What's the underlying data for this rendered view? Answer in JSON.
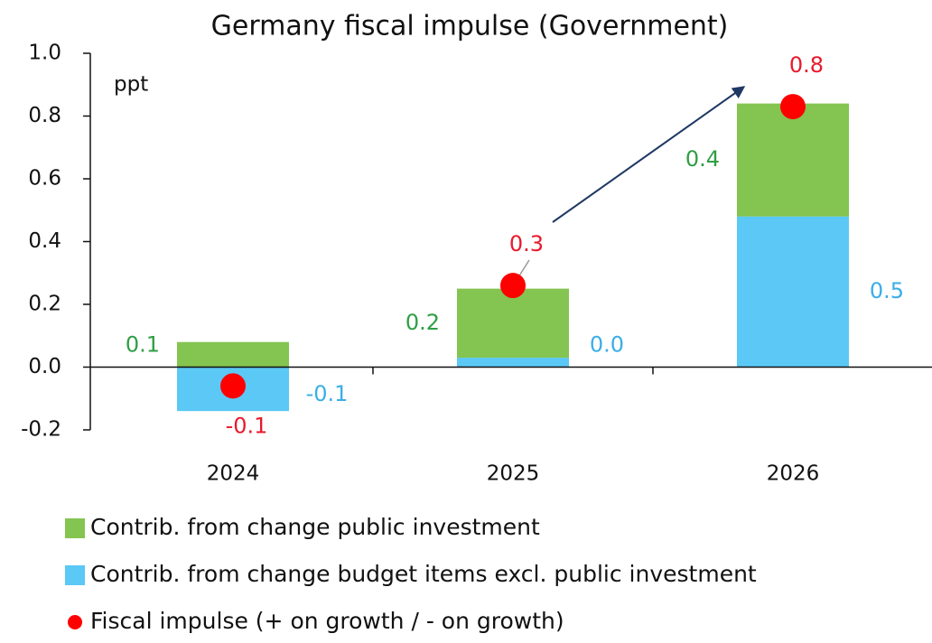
{
  "chart_data": {
    "type": "stacked_bar_dot",
    "title": "Germany fiscal impulse (Government)",
    "y_unit_label": "ppt",
    "categories": [
      "2024",
      "2025",
      "2026"
    ],
    "series": [
      {
        "name": "Contrib. from change budget items excl. public investment",
        "color": "#5bc8f5",
        "label_color": "#3aaee6",
        "values": [
          -0.14,
          0.03,
          0.48
        ],
        "value_labels": [
          "-0.1",
          "0.0",
          "0.5"
        ]
      },
      {
        "name": "Contrib. from change public investment",
        "color": "#84c450",
        "label_color": "#2f9e44",
        "values": [
          0.08,
          0.22,
          0.36
        ],
        "value_labels": [
          "0.1",
          "0.2",
          "0.4"
        ]
      }
    ],
    "dots": {
      "name": "Fiscal impulse (+ on growth / - on growth)",
      "color": "#ff0000",
      "label_color": "#e8192c",
      "values": [
        -0.06,
        0.26,
        0.83
      ],
      "value_labels": [
        "-0.1",
        "0.3",
        "0.8"
      ]
    },
    "ylim": [
      -0.2,
      1.0
    ],
    "yticks": [
      -0.2,
      {
        "value": 0,
        "label": "0.0"
      },
      0.2,
      0.4,
      0.6,
      0.8,
      {
        "value": 1,
        "label": "1.0"
      }
    ]
  }
}
